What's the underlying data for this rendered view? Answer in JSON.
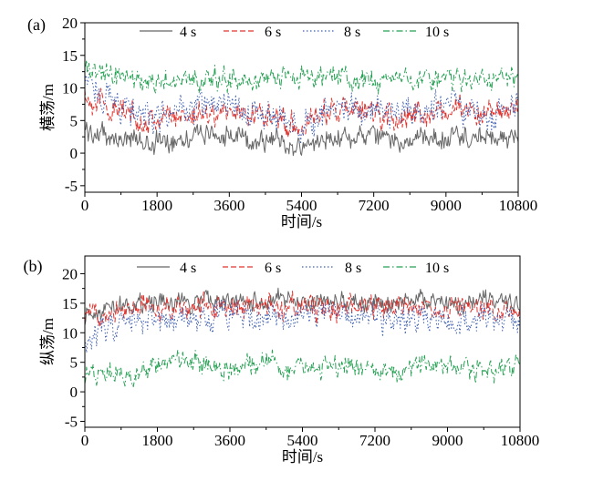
{
  "chart_data": [
    {
      "type": "line",
      "panel_label": "(a)",
      "xlabel": "时间/s",
      "ylabel": "横荡/m",
      "xlim": [
        0,
        10800
      ],
      "ylim": [
        -6,
        20
      ],
      "xticks": [
        0,
        1800,
        3600,
        5400,
        7200,
        9000,
        10800
      ],
      "yticks": [
        -5,
        0,
        5,
        10,
        15,
        20
      ],
      "legend_position": "top",
      "series": [
        {
          "name": "4 s",
          "color": "#666666",
          "dash": "solid",
          "x": [
            0,
            600,
            1200,
            1800,
            2400,
            3000,
            3600,
            4200,
            4800,
            5400,
            6000,
            6600,
            7200,
            7800,
            8400,
            9000,
            9600,
            10200,
            10800
          ],
          "values": [
            3.5,
            2.5,
            2.0,
            1.5,
            2.5,
            3.0,
            2.5,
            2.0,
            2.0,
            0.5,
            2.5,
            2.5,
            2.5,
            2.0,
            2.0,
            2.5,
            2.5,
            2.0,
            2.5
          ]
        },
        {
          "name": "6 s",
          "color": "#e2342f",
          "dash": "dash",
          "x": [
            0,
            600,
            1200,
            1800,
            2400,
            3000,
            3600,
            4200,
            4800,
            5400,
            6000,
            6600,
            7200,
            7800,
            8400,
            9000,
            9600,
            10200,
            10800
          ],
          "values": [
            9.0,
            7.0,
            5.5,
            5.0,
            6.0,
            6.0,
            6.5,
            6.0,
            5.5,
            4.0,
            6.5,
            6.5,
            6.0,
            5.5,
            6.0,
            6.5,
            6.5,
            6.0,
            6.5
          ]
        },
        {
          "name": "8 s",
          "color": "#3f5fb0",
          "dash": "dot",
          "x": [
            0,
            600,
            1200,
            1800,
            2400,
            3000,
            3600,
            4200,
            4800,
            5400,
            6000,
            6600,
            7200,
            7800,
            8400,
            9000,
            9600,
            10200,
            10800
          ],
          "values": [
            11.0,
            8.5,
            6.5,
            5.0,
            6.5,
            7.0,
            7.0,
            6.0,
            6.0,
            3.5,
            7.0,
            7.0,
            6.5,
            6.0,
            7.0,
            7.5,
            7.0,
            5.5,
            7.5
          ]
        },
        {
          "name": "10 s",
          "color": "#25a153",
          "dash": "dashdot",
          "x": [
            0,
            600,
            1200,
            1800,
            2400,
            3000,
            3600,
            4200,
            4800,
            5400,
            6000,
            6600,
            7200,
            7800,
            8400,
            9000,
            9600,
            10200,
            10800
          ],
          "values": [
            13.0,
            12.0,
            11.5,
            11.0,
            11.5,
            11.5,
            11.0,
            11.0,
            11.5,
            11.5,
            12.0,
            11.5,
            11.5,
            11.0,
            11.0,
            11.5,
            11.5,
            11.5,
            11.5
          ]
        }
      ]
    },
    {
      "type": "line",
      "panel_label": "(b)",
      "xlabel": "时间/s",
      "ylabel": "纵荡/m",
      "xlim": [
        0,
        10800
      ],
      "ylim": [
        -6,
        23
      ],
      "xticks": [
        0,
        1800,
        3600,
        5400,
        7200,
        9000,
        10800
      ],
      "yticks": [
        -5,
        0,
        5,
        10,
        15,
        20
      ],
      "legend_position": "top",
      "series": [
        {
          "name": "4 s",
          "color": "#666666",
          "dash": "solid",
          "x": [
            0,
            600,
            1200,
            1800,
            2400,
            3000,
            3600,
            4200,
            4800,
            5400,
            6000,
            6600,
            7200,
            7800,
            8400,
            9000,
            9600,
            10200,
            10800
          ],
          "values": [
            13.0,
            14.5,
            15.0,
            15.0,
            15.0,
            15.5,
            15.0,
            15.0,
            15.5,
            15.0,
            15.0,
            15.5,
            15.0,
            15.0,
            15.5,
            15.0,
            15.0,
            15.0,
            15.0
          ]
        },
        {
          "name": "6 s",
          "color": "#e2342f",
          "dash": "dash",
          "x": [
            0,
            600,
            1200,
            1800,
            2400,
            3000,
            3600,
            4200,
            4800,
            5400,
            6000,
            6600,
            7200,
            7800,
            8400,
            9000,
            9600,
            10200,
            10800
          ],
          "values": [
            13.0,
            14.0,
            14.5,
            14.5,
            14.0,
            14.5,
            14.0,
            14.5,
            14.0,
            14.5,
            14.0,
            14.5,
            14.0,
            14.5,
            14.0,
            14.0,
            14.5,
            14.0,
            14.5
          ]
        },
        {
          "name": "8 s",
          "color": "#3f5fb0",
          "dash": "dot",
          "x": [
            0,
            600,
            1200,
            1800,
            2400,
            3000,
            3600,
            4200,
            4800,
            5400,
            6000,
            6600,
            7200,
            7800,
            8400,
            9000,
            9600,
            10200,
            10800
          ],
          "values": [
            9.0,
            11.0,
            12.0,
            11.5,
            12.5,
            12.5,
            13.0,
            12.5,
            13.0,
            12.5,
            13.0,
            12.5,
            12.5,
            13.0,
            12.5,
            12.0,
            12.5,
            12.5,
            12.0
          ]
        },
        {
          "name": "10 s",
          "color": "#25a153",
          "dash": "dashdot",
          "x": [
            0,
            600,
            1200,
            1800,
            2400,
            3000,
            3600,
            4200,
            4800,
            5400,
            6000,
            6600,
            7200,
            7800,
            8400,
            9000,
            9600,
            10200,
            10800
          ],
          "values": [
            3.0,
            3.5,
            2.5,
            4.5,
            5.0,
            4.5,
            4.0,
            5.0,
            4.5,
            4.0,
            4.5,
            4.0,
            3.5,
            3.5,
            5.0,
            4.0,
            3.5,
            4.0,
            4.5
          ]
        }
      ]
    }
  ]
}
